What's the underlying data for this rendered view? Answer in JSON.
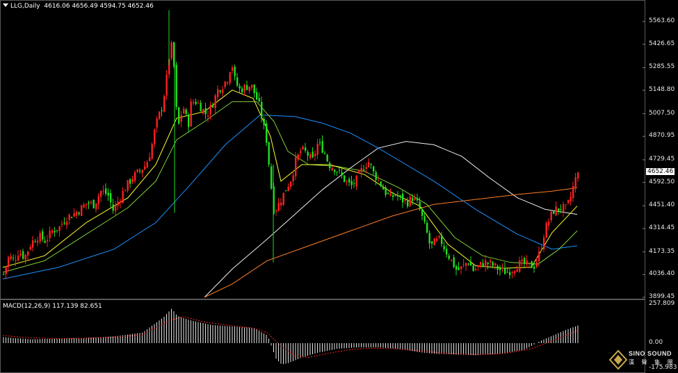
{
  "header": {
    "symbol": "LLG,Daily",
    "ohlc": "4616.06 4656.49 4594.75 4652.46"
  },
  "macd_header": {
    "label": "MACD(12,26,9) 117.139 82.651"
  },
  "price_axis": {
    "ticks": [
      "5563.60",
      "5426.65",
      "5285.55",
      "5148.80",
      "5007.50",
      "4870.95",
      "4729.45",
      "4592.50",
      "4451.40",
      "4314.45",
      "4173.35",
      "4036.40",
      "3899.45"
    ],
    "current_price": "4652.46"
  },
  "macd_axis": {
    "ticks": [
      "257.809",
      "0.00",
      "-175.983"
    ]
  },
  "logo": {
    "name": "SINO SOUND",
    "subtitle": "漢 聲 集 團"
  },
  "colors": {
    "background": "#000000",
    "bull": "#ff2020",
    "bear": "#20e020",
    "ma_yellow": "#ffff33",
    "ma_green": "#7fd13b",
    "ma_blue": "#1e90ff",
    "ma_white": "#f0f0f0",
    "ma_orange": "#ff7f27",
    "macd_hist": "#e8e8e8",
    "macd_signal": "#ff2020"
  },
  "chart_data": {
    "type": "candlestick",
    "symbol": "LLG",
    "timeframe": "Daily",
    "last_ohlc": {
      "open": 4616.06,
      "high": 4656.49,
      "low": 4594.75,
      "close": 4652.46
    },
    "ylim": [
      3899.45,
      5632
    ],
    "price_path": [
      [
        0,
        4040
      ],
      [
        8,
        4150
      ],
      [
        15,
        4120
      ],
      [
        22,
        4180
      ],
      [
        30,
        4140
      ],
      [
        40,
        4230
      ],
      [
        50,
        4270
      ],
      [
        60,
        4240
      ],
      [
        70,
        4300
      ],
      [
        80,
        4320
      ],
      [
        90,
        4380
      ],
      [
        100,
        4400
      ],
      [
        110,
        4430
      ],
      [
        120,
        4470
      ],
      [
        130,
        4460
      ],
      [
        140,
        4540
      ],
      [
        150,
        4520
      ],
      [
        158,
        4420
      ],
      [
        165,
        4480
      ],
      [
        175,
        4560
      ],
      [
        185,
        4620
      ],
      [
        195,
        4660
      ],
      [
        205,
        4700
      ],
      [
        212,
        4790
      ],
      [
        218,
        4920
      ],
      [
        222,
        4980
      ],
      [
        228,
        5050
      ],
      [
        234,
        5200
      ],
      [
        238,
        5350
      ],
      [
        242,
        5420
      ],
      [
        246,
        5250
      ],
      [
        250,
        4900
      ],
      [
        255,
        5000
      ],
      [
        260,
        5050
      ],
      [
        265,
        4920
      ],
      [
        270,
        5080
      ],
      [
        278,
        5080
      ],
      [
        285,
        5040
      ],
      [
        292,
        5000
      ],
      [
        300,
        5060
      ],
      [
        308,
        5150
      ],
      [
        315,
        5180
      ],
      [
        322,
        5220
      ],
      [
        328,
        5320
      ],
      [
        333,
        5200
      ],
      [
        340,
        5150
      ],
      [
        348,
        5170
      ],
      [
        356,
        5180
      ],
      [
        362,
        5120
      ],
      [
        368,
        5050
      ],
      [
        373,
        4950
      ],
      [
        378,
        4850
      ],
      [
        383,
        4650
      ],
      [
        388,
        4430
      ],
      [
        393,
        4440
      ],
      [
        400,
        4500
      ],
      [
        407,
        4560
      ],
      [
        414,
        4620
      ],
      [
        420,
        4720
      ],
      [
        428,
        4790
      ],
      [
        436,
        4770
      ],
      [
        444,
        4720
      ],
      [
        452,
        4830
      ],
      [
        460,
        4790
      ],
      [
        468,
        4700
      ],
      [
        476,
        4680
      ],
      [
        484,
        4640
      ],
      [
        492,
        4600
      ],
      [
        500,
        4570
      ],
      [
        508,
        4610
      ],
      [
        514,
        4660
      ],
      [
        520,
        4700
      ],
      [
        526,
        4720
      ],
      [
        532,
        4650
      ],
      [
        540,
        4600
      ],
      [
        548,
        4540
      ],
      [
        556,
        4500
      ],
      [
        564,
        4520
      ],
      [
        572,
        4490
      ],
      [
        580,
        4470
      ],
      [
        588,
        4500
      ],
      [
        596,
        4460
      ],
      [
        602,
        4380
      ],
      [
        608,
        4300
      ],
      [
        614,
        4200
      ],
      [
        620,
        4230
      ],
      [
        628,
        4250
      ],
      [
        636,
        4180
      ],
      [
        644,
        4120
      ],
      [
        652,
        4060
      ],
      [
        660,
        4080
      ],
      [
        668,
        4120
      ],
      [
        676,
        4060
      ],
      [
        684,
        4090
      ],
      [
        692,
        4110
      ],
      [
        700,
        4100
      ],
      [
        708,
        4080
      ],
      [
        716,
        4060
      ],
      [
        724,
        4050
      ],
      [
        732,
        4070
      ],
      [
        740,
        4100
      ],
      [
        748,
        4100
      ],
      [
        756,
        4090
      ],
      [
        764,
        4090
      ],
      [
        772,
        4180
      ],
      [
        778,
        4300
      ],
      [
        784,
        4360
      ],
      [
        790,
        4420
      ],
      [
        796,
        4430
      ],
      [
        802,
        4440
      ],
      [
        808,
        4430
      ],
      [
        814,
        4480
      ],
      [
        820,
        4580
      ],
      [
        826,
        4652.46
      ]
    ],
    "ma_yellow": [
      [
        0,
        4080
      ],
      [
        60,
        4150
      ],
      [
        120,
        4350
      ],
      [
        180,
        4500
      ],
      [
        220,
        4700
      ],
      [
        250,
        4980
      ],
      [
        290,
        5020
      ],
      [
        330,
        5150
      ],
      [
        360,
        5100
      ],
      [
        385,
        4870
      ],
      [
        400,
        4600
      ],
      [
        430,
        4700
      ],
      [
        470,
        4700
      ],
      [
        520,
        4640
      ],
      [
        560,
        4530
      ],
      [
        600,
        4450
      ],
      [
        640,
        4220
      ],
      [
        680,
        4090
      ],
      [
        720,
        4075
      ],
      [
        760,
        4080
      ],
      [
        790,
        4290
      ],
      [
        826,
        4450
      ]
    ],
    "ma_green": [
      [
        0,
        4050
      ],
      [
        60,
        4120
      ],
      [
        120,
        4280
      ],
      [
        180,
        4440
      ],
      [
        220,
        4600
      ],
      [
        250,
        4850
      ],
      [
        290,
        4960
      ],
      [
        330,
        5080
      ],
      [
        365,
        5080
      ],
      [
        390,
        4960
      ],
      [
        410,
        4780
      ],
      [
        440,
        4700
      ],
      [
        480,
        4690
      ],
      [
        520,
        4660
      ],
      [
        570,
        4560
      ],
      [
        610,
        4460
      ],
      [
        650,
        4260
      ],
      [
        690,
        4150
      ],
      [
        730,
        4110
      ],
      [
        770,
        4100
      ],
      [
        800,
        4190
      ],
      [
        826,
        4300
      ]
    ],
    "ma_blue": [
      [
        0,
        4010
      ],
      [
        80,
        4080
      ],
      [
        160,
        4190
      ],
      [
        220,
        4350
      ],
      [
        270,
        4580
      ],
      [
        320,
        4820
      ],
      [
        370,
        5000
      ],
      [
        420,
        4990
      ],
      [
        460,
        4950
      ],
      [
        500,
        4890
      ],
      [
        540,
        4800
      ],
      [
        580,
        4700
      ],
      [
        620,
        4600
      ],
      [
        680,
        4430
      ],
      [
        740,
        4280
      ],
      [
        790,
        4190
      ],
      [
        826,
        4210
      ]
    ],
    "ma_white": [
      [
        290,
        3899.45
      ],
      [
        330,
        4070
      ],
      [
        380,
        4250
      ],
      [
        420,
        4400
      ],
      [
        460,
        4550
      ],
      [
        500,
        4680
      ],
      [
        540,
        4800
      ],
      [
        580,
        4840
      ],
      [
        620,
        4820
      ],
      [
        660,
        4750
      ],
      [
        700,
        4620
      ],
      [
        740,
        4500
      ],
      [
        780,
        4430
      ],
      [
        826,
        4400
      ]
    ],
    "ma_orange": [
      [
        290,
        3899.45
      ],
      [
        330,
        3980
      ],
      [
        380,
        4120
      ],
      [
        440,
        4210
      ],
      [
        500,
        4300
      ],
      [
        560,
        4390
      ],
      [
        620,
        4460
      ],
      [
        680,
        4490
      ],
      [
        740,
        4520
      ],
      [
        790,
        4540
      ],
      [
        826,
        4560
      ]
    ],
    "macd_ylim": [
      -175.983,
      257.809
    ],
    "macd_histogram": [
      [
        0,
        40
      ],
      [
        40,
        25
      ],
      [
        80,
        30
      ],
      [
        120,
        35
      ],
      [
        160,
        45
      ],
      [
        200,
        70
      ],
      [
        230,
        170
      ],
      [
        242,
        230
      ],
      [
        250,
        180
      ],
      [
        270,
        150
      ],
      [
        300,
        120
      ],
      [
        330,
        110
      ],
      [
        360,
        100
      ],
      [
        380,
        50
      ],
      [
        392,
        -110
      ],
      [
        400,
        -150
      ],
      [
        410,
        -140
      ],
      [
        430,
        -100
      ],
      [
        450,
        -70
      ],
      [
        480,
        -40
      ],
      [
        510,
        -30
      ],
      [
        540,
        -30
      ],
      [
        570,
        -40
      ],
      [
        600,
        -65
      ],
      [
        620,
        -75
      ],
      [
        650,
        -80
      ],
      [
        680,
        -85
      ],
      [
        700,
        -80
      ],
      [
        720,
        -70
      ],
      [
        750,
        -45
      ],
      [
        770,
        10
      ],
      [
        790,
        50
      ],
      [
        810,
        90
      ],
      [
        826,
        117.139
      ]
    ],
    "macd_signal": [
      [
        0,
        50
      ],
      [
        40,
        35
      ],
      [
        80,
        30
      ],
      [
        120,
        32
      ],
      [
        160,
        40
      ],
      [
        200,
        55
      ],
      [
        240,
        150
      ],
      [
        260,
        175
      ],
      [
        290,
        140
      ],
      [
        330,
        115
      ],
      [
        360,
        100
      ],
      [
        380,
        70
      ],
      [
        400,
        -20
      ],
      [
        420,
        -90
      ],
      [
        440,
        -100
      ],
      [
        470,
        -70
      ],
      [
        500,
        -45
      ],
      [
        530,
        -35
      ],
      [
        560,
        -38
      ],
      [
        600,
        -55
      ],
      [
        640,
        -72
      ],
      [
        680,
        -80
      ],
      [
        720,
        -75
      ],
      [
        760,
        -40
      ],
      [
        790,
        15
      ],
      [
        810,
        50
      ],
      [
        826,
        82.651
      ]
    ]
  }
}
